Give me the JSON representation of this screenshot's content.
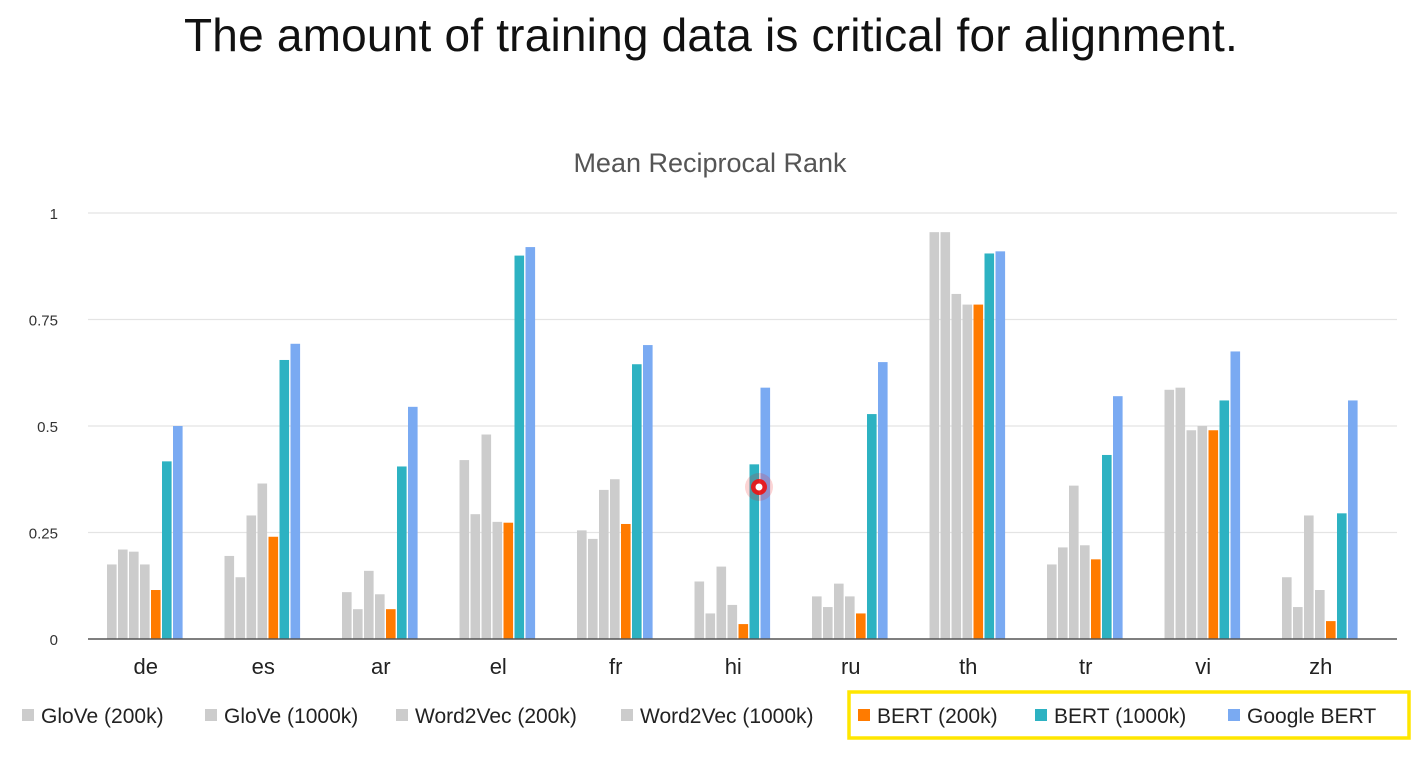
{
  "slide": {
    "title": "The amount of training data is critical for alignment."
  },
  "chart_data": {
    "type": "bar",
    "title": "Mean Reciprocal Rank",
    "xlabel": "",
    "ylabel": "",
    "ylim": [
      0,
      1
    ],
    "yticks": [
      0,
      0.25,
      0.5,
      0.75,
      1
    ],
    "ytick_labels": [
      "0",
      "0.25",
      "0.5",
      "0.75",
      "1"
    ],
    "grid": true,
    "legend_position": "bottom",
    "categories": [
      "de",
      "es",
      "ar",
      "el",
      "fr",
      "hi",
      "ru",
      "th",
      "tr",
      "vi",
      "zh"
    ],
    "series": [
      {
        "name": "GloVe (200k)",
        "color": "#cccccc",
        "values": [
          0.175,
          0.195,
          0.11,
          0.42,
          0.255,
          0.135,
          0.1,
          0.955,
          0.175,
          0.585,
          0.145
        ]
      },
      {
        "name": "GloVe (1000k)",
        "color": "#cccccc",
        "values": [
          0.21,
          0.145,
          0.07,
          0.293,
          0.235,
          0.06,
          0.075,
          0.955,
          0.215,
          0.59,
          0.075
        ]
      },
      {
        "name": "Word2Vec (200k)",
        "color": "#cccccc",
        "values": [
          0.205,
          0.29,
          0.16,
          0.48,
          0.35,
          0.17,
          0.13,
          0.81,
          0.36,
          0.49,
          0.29
        ]
      },
      {
        "name": "Word2Vec (1000k)",
        "color": "#cccccc",
        "values": [
          0.175,
          0.365,
          0.105,
          0.275,
          0.375,
          0.08,
          0.1,
          0.785,
          0.22,
          0.5,
          0.115
        ]
      },
      {
        "name": "BERT (200k)",
        "color": "#ff7b00",
        "values": [
          0.115,
          0.24,
          0.07,
          0.273,
          0.27,
          0.035,
          0.06,
          0.785,
          0.187,
          0.49,
          0.042
        ]
      },
      {
        "name": "BERT (1000k)",
        "color": "#2db2c2",
        "values": [
          0.417,
          0.655,
          0.405,
          0.9,
          0.645,
          0.41,
          0.528,
          0.905,
          0.432,
          0.56,
          0.295
        ]
      },
      {
        "name": "Google BERT",
        "color": "#7aaaf2",
        "values": [
          0.5,
          0.693,
          0.545,
          0.92,
          0.69,
          0.59,
          0.65,
          0.91,
          0.57,
          0.675,
          0.56
        ]
      }
    ],
    "highlight_color": "#ffe600",
    "cursor_color": "#ee1111"
  }
}
